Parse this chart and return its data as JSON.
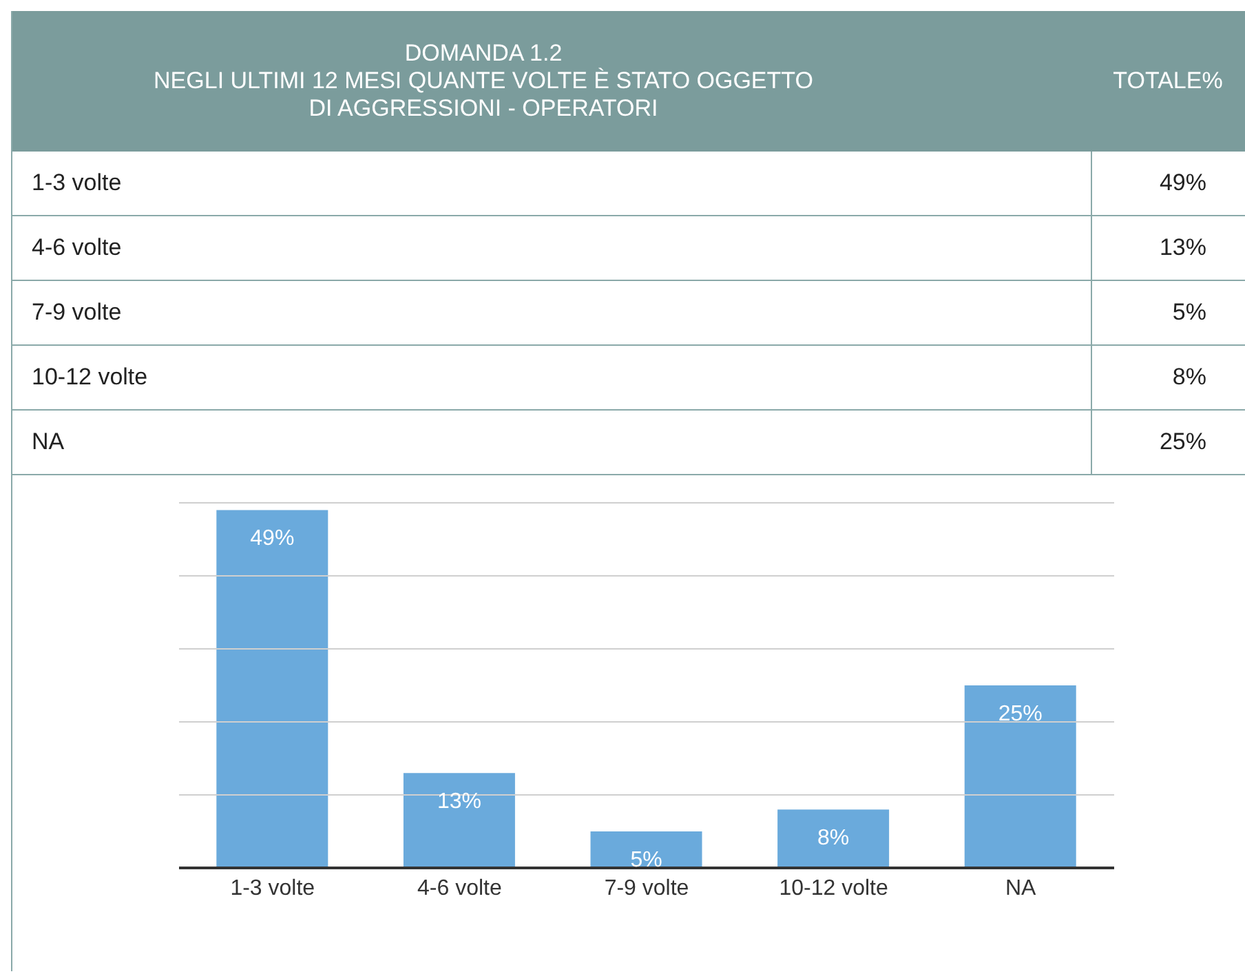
{
  "chart_data": {
    "type": "bar",
    "title": "DOMANDA 1.2\nNEGLI ULTIMI 12 MESI QUANTE VOLTE È STATO OGGETTO\nDI AGGRESSIONI - OPERATORI",
    "annotations": [
      "TOTALE%"
    ],
    "categories": [
      "1-3 volte",
      "4-6 volte",
      "7-9 volte",
      "10-12 volte",
      "NA"
    ],
    "values": [
      49,
      13,
      5,
      8,
      25
    ],
    "value_labels": [
      "49%",
      "13%",
      "5%",
      "8%",
      "25%"
    ],
    "color": "#6aaadc",
    "ylim": [
      0,
      50
    ],
    "yticks": [
      {
        "value": 0,
        "label": null
      },
      {
        "value": 10,
        "label": null
      },
      {
        "value": 20,
        "label": null
      },
      {
        "value": 30,
        "label": null
      },
      {
        "value": 40,
        "label": null
      },
      {
        "value": 50,
        "label": null
      }
    ],
    "tick_labels": "x",
    "grid": "y"
  }
}
